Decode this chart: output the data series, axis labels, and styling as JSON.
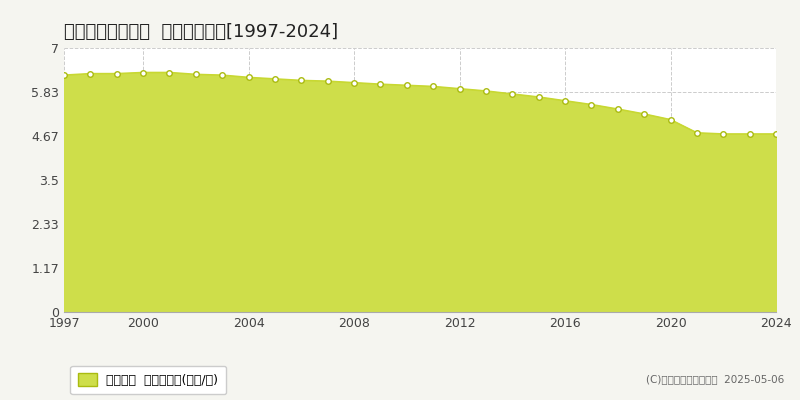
{
  "title": "佐用郡佐用町平福  基準地価推移[1997-2024]",
  "years": [
    1997,
    1998,
    1999,
    2000,
    2001,
    2002,
    2003,
    2004,
    2005,
    2006,
    2007,
    2008,
    2009,
    2010,
    2011,
    2012,
    2013,
    2014,
    2015,
    2016,
    2017,
    2018,
    2019,
    2020,
    2021,
    2022,
    2023,
    2024
  ],
  "values": [
    6.28,
    6.32,
    6.32,
    6.35,
    6.35,
    6.3,
    6.28,
    6.22,
    6.18,
    6.14,
    6.12,
    6.08,
    6.04,
    6.01,
    5.98,
    5.92,
    5.86,
    5.78,
    5.7,
    5.6,
    5.5,
    5.38,
    5.25,
    5.1,
    4.75,
    4.72,
    4.72,
    4.72
  ],
  "ylim": [
    0,
    7
  ],
  "yticks": [
    0,
    1.17,
    2.33,
    3.5,
    4.67,
    5.83,
    7
  ],
  "ytick_labels": [
    "0",
    "1.17",
    "2.33",
    "3.5",
    "4.67",
    "5.83",
    "7"
  ],
  "xticks": [
    1997,
    2000,
    2004,
    2008,
    2012,
    2016,
    2020,
    2024
  ],
  "line_color": "#c8d832",
  "fill_color": "#cede4a",
  "fill_alpha": 1.0,
  "marker_color": "#ffffff",
  "marker_edge_color": "#aabb10",
  "bg_color": "#f5f5f0",
  "plot_bg_color": "#ffffff",
  "grid_color": "#cccccc",
  "legend_label": "基準地価  平均坪単価(万円/坪)",
  "copyright": "(C)土地価格ドットコム  2025-05-06",
  "title_fontsize": 13,
  "tick_fontsize": 9,
  "legend_fontsize": 9
}
